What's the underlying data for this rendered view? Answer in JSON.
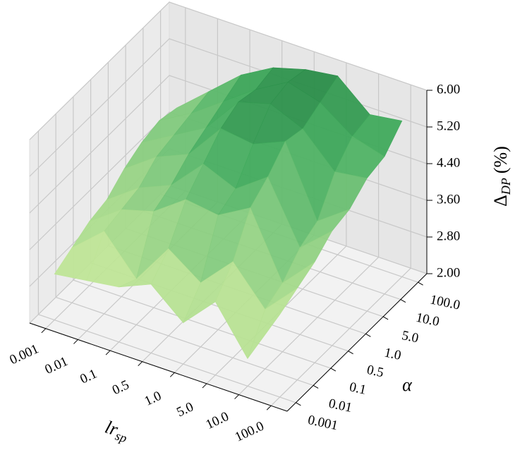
{
  "chart_data": {
    "type": "surface",
    "x_label": [
      "lr",
      "sp"
    ],
    "y_label": "α",
    "z_label": [
      "Δ",
      "DP",
      "(%)"
    ],
    "x_categories": [
      "0.001",
      "0.01",
      "0.1",
      "0.5",
      "1.0",
      "5.0",
      "10.0",
      "100.0"
    ],
    "y_categories": [
      "0.001",
      "0.01",
      "0.1",
      "0.5",
      "1.0",
      "5.0",
      "10.0",
      "100.0"
    ],
    "z": [
      [
        3.0,
        3.1,
        3.2,
        3.5,
        2.9,
        3.6,
        2.6,
        3.8
      ],
      [
        3.2,
        3.8,
        3.0,
        3.9,
        3.4,
        4.1,
        3.3,
        4.0
      ],
      [
        3.4,
        3.9,
        4.1,
        4.6,
        4.5,
        4.9,
        3.5,
        4.2
      ],
      [
        3.5,
        4.0,
        4.3,
        5.0,
        4.7,
        5.2,
        3.9,
        4.5
      ],
      [
        3.8,
        4.3,
        4.6,
        5.4,
        5.3,
        5.6,
        4.1,
        4.6
      ],
      [
        4.0,
        4.4,
        4.8,
        5.6,
        5.8,
        5.5,
        4.8,
        4.9
      ],
      [
        4.1,
        4.5,
        5.0,
        5.5,
        5.9,
        5.7,
        5.2,
        5.0
      ],
      [
        4.0,
        4.6,
        5.2,
        5.6,
        5.8,
        5.9,
        5.3,
        5.4
      ]
    ],
    "zlim": [
      2,
      6
    ],
    "zticks": [
      {
        "value": 2,
        "label": "2.00"
      },
      {
        "value": 2.8,
        "label": "2.80"
      },
      {
        "value": 3.6,
        "label": "3.60"
      },
      {
        "value": 4.4,
        "label": "4.40"
      },
      {
        "value": 5.2,
        "label": "5.20"
      },
      {
        "value": 6,
        "label": "6.00"
      }
    ],
    "colormap": [
      "#f7fcb9",
      "#d9f0a3",
      "#addd8e",
      "#78c679",
      "#41ab5d",
      "#238443"
    ],
    "grid": true
  }
}
